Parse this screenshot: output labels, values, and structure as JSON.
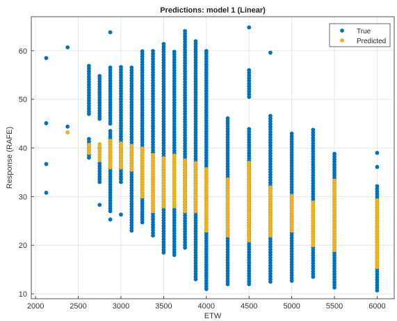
{
  "chart_data": {
    "type": "scatter",
    "title": "Predictions: model 1 (Linear)",
    "xlabel": "ETW",
    "ylabel": "Response (RAFE)",
    "xlim": [
      1950,
      6200
    ],
    "ylim": [
      9,
      67
    ],
    "xticks": [
      2000,
      2500,
      3000,
      3500,
      4000,
      4500,
      5000,
      5500,
      6000
    ],
    "yticks": [
      10,
      20,
      30,
      40,
      50,
      60
    ],
    "grid": true,
    "legend_position": "top-right",
    "series": [
      {
        "name": "True",
        "color": "#0072BD",
        "groups": [
          {
            "x": 2125,
            "ranges": [],
            "points": [
              30.8,
              36.7,
              45.1,
              58.5
            ]
          },
          {
            "x": 2375,
            "ranges": [],
            "points": [
              44.4,
              60.7
            ]
          },
          {
            "x": 2625,
            "ranges": [
              [
                38,
                42
              ],
              [
                47,
                57
              ]
            ],
            "points": []
          },
          {
            "x": 2750,
            "ranges": [
              [
                33,
                37
              ],
              [
                46,
                55
              ]
            ],
            "points": [
              28.3,
              40.0
            ]
          },
          {
            "x": 2875,
            "ranges": [
              [
                27,
                44
              ],
              [
                45,
                57
              ]
            ],
            "points": [
              25.3,
              63.8
            ]
          },
          {
            "x": 3000,
            "ranges": [
              [
                33,
                57
              ]
            ],
            "points": [
              26.3
            ]
          },
          {
            "x": 3125,
            "ranges": [
              [
                23,
                57
              ]
            ],
            "points": []
          },
          {
            "x": 3250,
            "ranges": [
              [
                24.7,
                60
              ]
            ],
            "points": []
          },
          {
            "x": 3375,
            "ranges": [
              [
                22,
                60
              ]
            ],
            "points": []
          },
          {
            "x": 3500,
            "ranges": [
              [
                18.5,
                61.5
              ]
            ],
            "points": []
          },
          {
            "x": 3625,
            "ranges": [
              [
                18,
                60
              ]
            ],
            "points": []
          },
          {
            "x": 3750,
            "ranges": [
              [
                19.5,
                64.2
              ]
            ],
            "points": []
          },
          {
            "x": 3875,
            "ranges": [
              [
                13,
                62
              ]
            ],
            "points": []
          },
          {
            "x": 4000,
            "ranges": [
              [
                11,
                60
              ]
            ],
            "points": []
          },
          {
            "x": 4250,
            "ranges": [
              [
                12,
                46.5
              ]
            ],
            "points": []
          },
          {
            "x": 4500,
            "ranges": [
              [
                12,
                44.2
              ],
              [
                50.5,
                56.5
              ]
            ],
            "points": [
              64.8
            ]
          },
          {
            "x": 4750,
            "ranges": [
              [
                12.5,
                47
              ]
            ],
            "points": [
              59.6
            ]
          },
          {
            "x": 5000,
            "ranges": [
              [
                12.7,
                43.3
              ]
            ],
            "points": []
          },
          {
            "x": 5250,
            "ranges": [
              [
                13.5,
                44.2
              ]
            ],
            "points": []
          },
          {
            "x": 5500,
            "ranges": [
              [
                11.3,
                39.2
              ]
            ],
            "points": []
          },
          {
            "x": 6000,
            "ranges": [
              [
                10.7,
                32.5
              ]
            ],
            "points": [
              36.1,
              39.0
            ]
          }
        ]
      },
      {
        "name": "Predicted",
        "color": "#EDB120",
        "groups": [
          {
            "x": 2375,
            "ranges": [],
            "points": [
              43.2
            ]
          },
          {
            "x": 2625,
            "ranges": [
              [
                39,
                41
              ]
            ],
            "points": []
          },
          {
            "x": 2750,
            "ranges": [
              [
                37.5,
                41.3
              ]
            ],
            "points": []
          },
          {
            "x": 2875,
            "ranges": [
              [
                36,
                41.5
              ]
            ],
            "points": []
          },
          {
            "x": 3000,
            "ranges": [
              [
                36,
                41
              ]
            ],
            "points": []
          },
          {
            "x": 3125,
            "ranges": [
              [
                35.5,
                40.5
              ]
            ],
            "points": []
          },
          {
            "x": 3250,
            "ranges": [
              [
                30,
                40
              ]
            ],
            "points": []
          },
          {
            "x": 3375,
            "ranges": [
              [
                27,
                39
              ]
            ],
            "points": []
          },
          {
            "x": 3500,
            "ranges": [
              [
                28,
                38
              ]
            ],
            "points": []
          },
          {
            "x": 3625,
            "ranges": [
              [
                28,
                38.5
              ]
            ],
            "points": []
          },
          {
            "x": 3750,
            "ranges": [
              [
                27,
                37.5
              ]
            ],
            "points": []
          },
          {
            "x": 3875,
            "ranges": [
              [
                27,
                37
              ]
            ],
            "points": []
          },
          {
            "x": 4000,
            "ranges": [
              [
                23,
                36
              ]
            ],
            "points": []
          },
          {
            "x": 4250,
            "ranges": [
              [
                22,
                34
              ]
            ],
            "points": []
          },
          {
            "x": 4500,
            "ranges": [
              [
                21,
                37
              ]
            ],
            "points": []
          },
          {
            "x": 4750,
            "ranges": [
              [
                22,
                32
              ]
            ],
            "points": []
          },
          {
            "x": 5000,
            "ranges": [
              [
                23,
                30.5
              ]
            ],
            "points": []
          },
          {
            "x": 5250,
            "ranges": [
              [
                20,
                29
              ]
            ],
            "points": []
          },
          {
            "x": 5500,
            "ranges": [
              [
                19,
                33.5
              ]
            ],
            "points": []
          },
          {
            "x": 6000,
            "ranges": [
              [
                15.5,
                29.5
              ]
            ],
            "points": []
          }
        ]
      }
    ]
  }
}
